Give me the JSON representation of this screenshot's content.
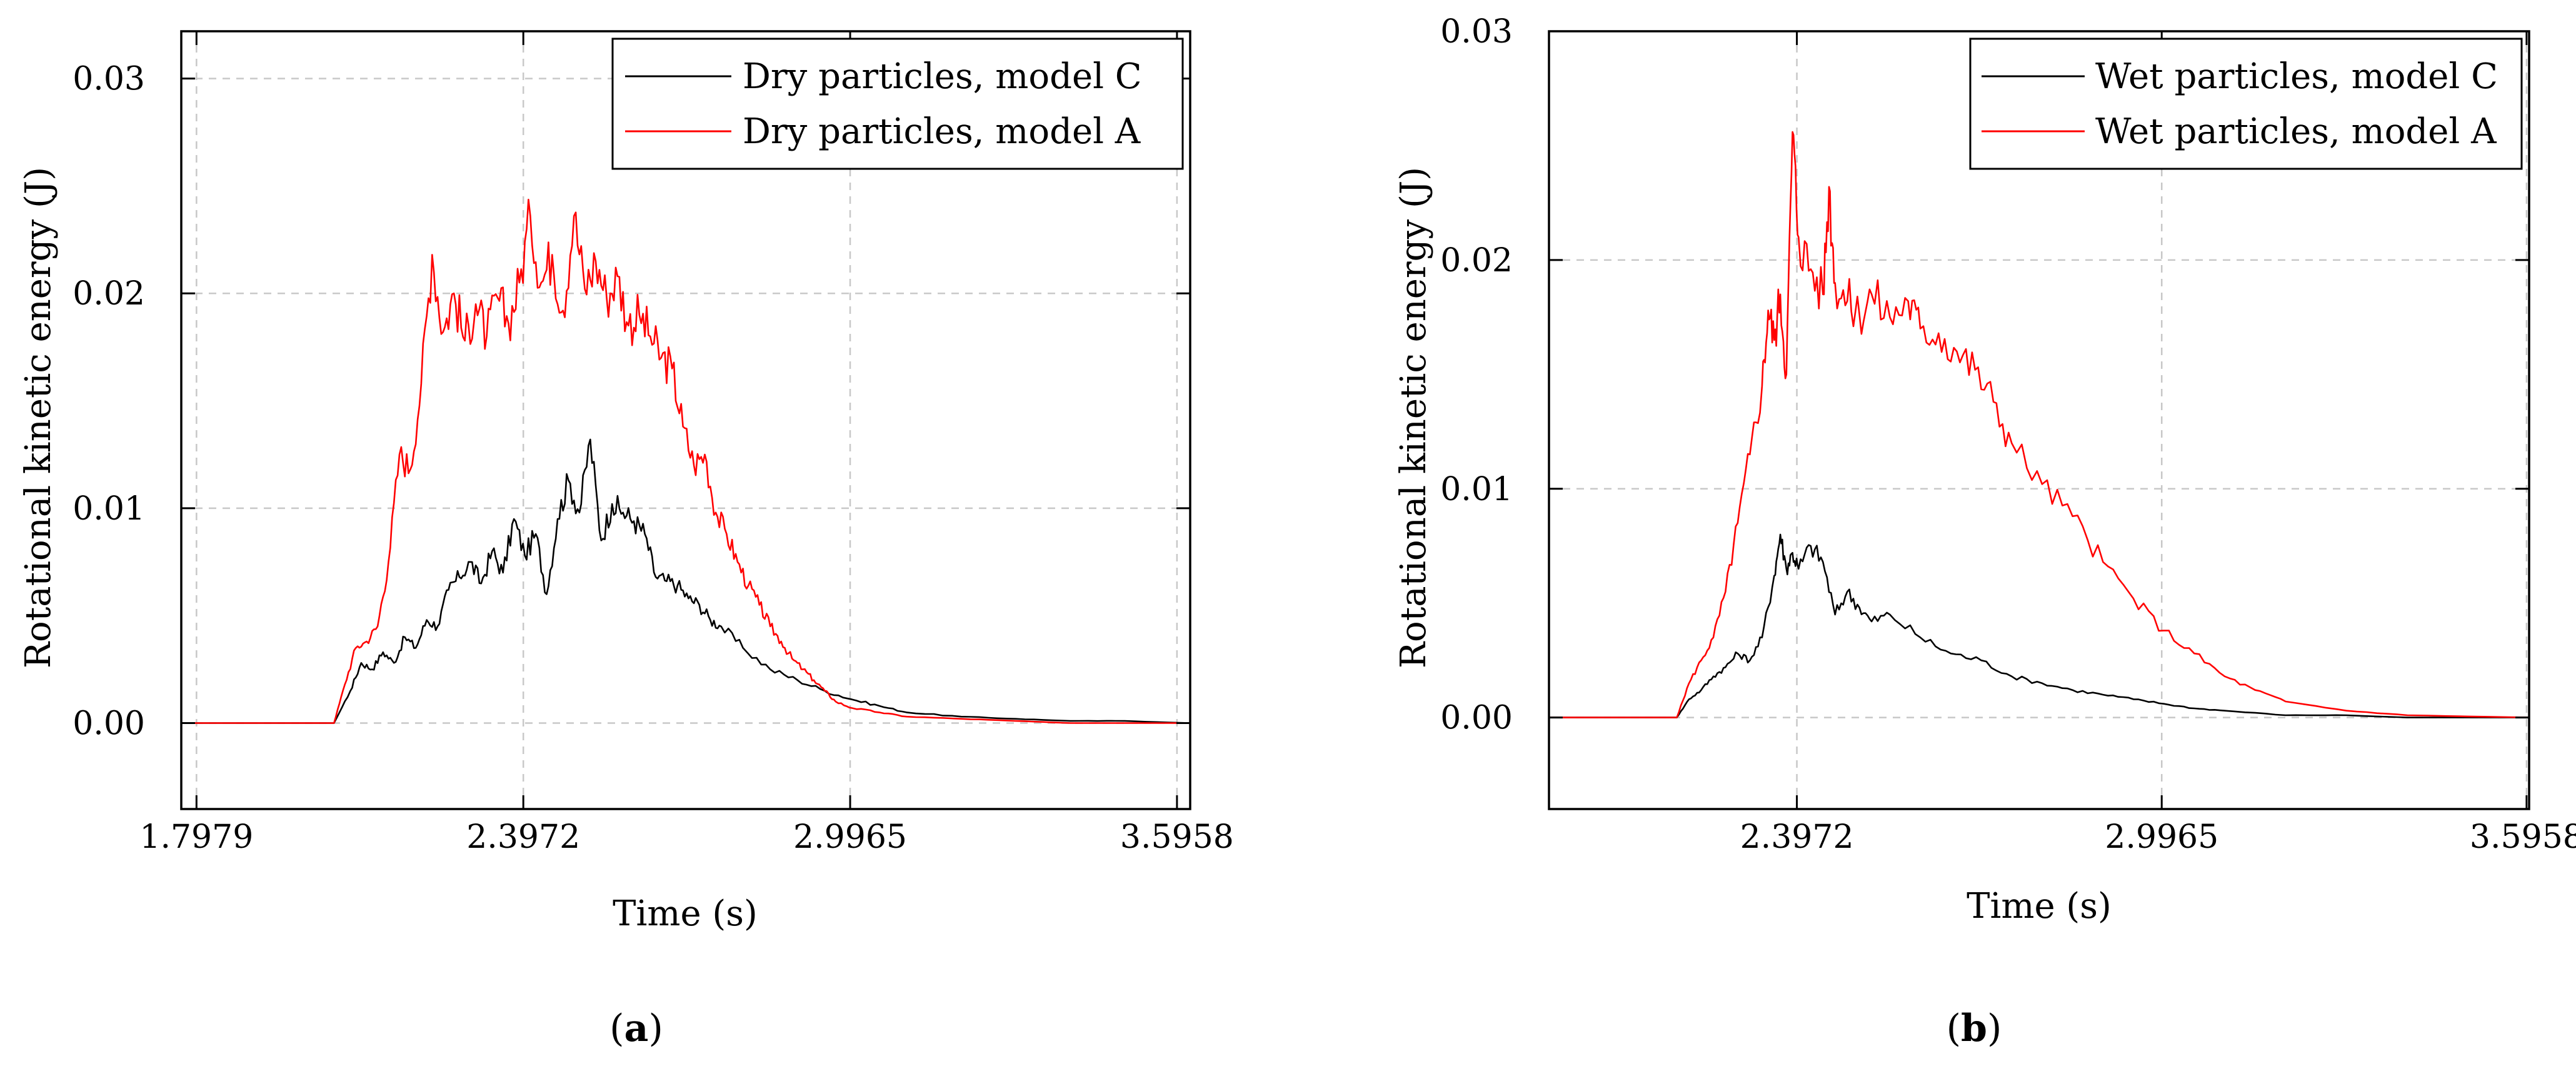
{
  "figure": {
    "panels": [
      {
        "label": "(a)",
        "label_letter": "a"
      },
      {
        "label": "(b)",
        "label_letter": "b"
      }
    ]
  },
  "colors": {
    "model_c": "#000000",
    "model_a": "#ff0000"
  },
  "chart_data": [
    {
      "type": "line",
      "panel": "a",
      "title": "",
      "xlabel": "Time (s)",
      "ylabel": "Rotational kinetic energy (J)",
      "xlim": [
        1.77,
        3.62
      ],
      "ylim": [
        -0.004,
        0.0322
      ],
      "xticks": [
        1.7979,
        2.3972,
        2.9965,
        3.5958
      ],
      "xtick_labels": [
        "1.7979",
        "2.3972",
        "2.9965",
        "3.5958"
      ],
      "yticks": [
        0.0,
        0.01,
        0.02,
        0.03
      ],
      "ytick_labels": [
        "0.00",
        "0.01",
        "0.02",
        "0.03"
      ],
      "grid": true,
      "legend_position": "top-right",
      "series": [
        {
          "name": "Dry particles, model C",
          "color": "#000000",
          "x": [
            1.77,
            2.05,
            2.08,
            2.1,
            2.12,
            2.14,
            2.16,
            2.18,
            2.2,
            2.22,
            2.24,
            2.26,
            2.28,
            2.3,
            2.32,
            2.34,
            2.36,
            2.38,
            2.4,
            2.42,
            2.44,
            2.46,
            2.48,
            2.5,
            2.52,
            2.54,
            2.56,
            2.58,
            2.6,
            2.62,
            2.64,
            2.66,
            2.68,
            2.7,
            2.72,
            2.74,
            2.76,
            2.8,
            2.85,
            2.9,
            2.95,
            3.0,
            3.05,
            3.1,
            3.2,
            3.3,
            3.4,
            3.5,
            3.62
          ],
          "y": [
            0.0,
            0.0,
            0.0015,
            0.0028,
            0.0025,
            0.0033,
            0.0028,
            0.004,
            0.0035,
            0.0048,
            0.0045,
            0.0062,
            0.0068,
            0.0075,
            0.0065,
            0.008,
            0.007,
            0.0095,
            0.0078,
            0.0088,
            0.006,
            0.0095,
            0.0113,
            0.0098,
            0.0132,
            0.0085,
            0.0102,
            0.0098,
            0.0094,
            0.0088,
            0.0068,
            0.0066,
            0.0064,
            0.0058,
            0.0055,
            0.0048,
            0.0045,
            0.0035,
            0.0025,
            0.002,
            0.0015,
            0.0011,
            0.0008,
            0.0005,
            0.0003,
            0.0002,
            0.0001,
            0.0001,
            0.0
          ]
        },
        {
          "name": "Dry particles, model A",
          "color": "#ff0000",
          "x": [
            1.77,
            2.05,
            2.07,
            2.09,
            2.11,
            2.13,
            2.15,
            2.17,
            2.19,
            2.21,
            2.23,
            2.25,
            2.27,
            2.29,
            2.31,
            2.33,
            2.35,
            2.37,
            2.39,
            2.41,
            2.43,
            2.45,
            2.47,
            2.49,
            2.51,
            2.53,
            2.55,
            2.57,
            2.59,
            2.61,
            2.63,
            2.65,
            2.67,
            2.69,
            2.71,
            2.73,
            2.75,
            2.77,
            2.79,
            2.81,
            2.83,
            2.85,
            2.87,
            2.89,
            2.91,
            2.93,
            2.95,
            2.97,
            3.0,
            3.05,
            3.1,
            3.2,
            3.3,
            3.4,
            3.62
          ],
          "y": [
            0.0,
            0.0,
            0.0018,
            0.0035,
            0.0038,
            0.0045,
            0.0075,
            0.0125,
            0.0118,
            0.0158,
            0.0218,
            0.0182,
            0.02,
            0.0178,
            0.0195,
            0.018,
            0.0198,
            0.0186,
            0.0205,
            0.0236,
            0.0205,
            0.0218,
            0.0192,
            0.0236,
            0.0202,
            0.0215,
            0.0198,
            0.0208,
            0.0185,
            0.019,
            0.018,
            0.017,
            0.0165,
            0.0138,
            0.012,
            0.0125,
            0.0098,
            0.0088,
            0.0075,
            0.0064,
            0.0055,
            0.0045,
            0.0038,
            0.003,
            0.0025,
            0.002,
            0.0015,
            0.001,
            0.0007,
            0.0005,
            0.0003,
            0.0002,
            0.0001,
            0.0,
            0.0
          ]
        }
      ]
    },
    {
      "type": "line",
      "panel": "b",
      "title": "",
      "xlabel": "Time (s)",
      "ylabel": "Rotational kinetic energy (J)",
      "xlim": [
        1.99,
        3.6
      ],
      "ylim": [
        -0.004,
        0.03
      ],
      "xticks": [
        2.3972,
        2.9965,
        3.5958
      ],
      "xtick_labels": [
        "2.3972",
        "2.9965",
        "3.5958"
      ],
      "yticks": [
        0.0,
        0.01,
        0.02,
        0.03
      ],
      "ytick_labels": [
        "0.00",
        "0.01",
        "0.02",
        "0.03"
      ],
      "grid": true,
      "legend_position": "top-right",
      "series": [
        {
          "name": "Wet particles, model C",
          "color": "#000000",
          "x": [
            1.99,
            2.2,
            2.22,
            2.24,
            2.26,
            2.28,
            2.3,
            2.32,
            2.34,
            2.36,
            2.37,
            2.38,
            2.39,
            2.4,
            2.42,
            2.44,
            2.46,
            2.48,
            2.5,
            2.52,
            2.55,
            2.6,
            2.65,
            2.7,
            2.75,
            2.8,
            2.85,
            2.9,
            2.95,
            3.0,
            3.05,
            3.1,
            3.2,
            3.3,
            3.4,
            3.6
          ],
          "y": [
            0.0,
            0.0,
            0.0008,
            0.0012,
            0.0018,
            0.0022,
            0.0028,
            0.0025,
            0.0035,
            0.0062,
            0.008,
            0.0065,
            0.0072,
            0.0065,
            0.0075,
            0.0068,
            0.0045,
            0.0055,
            0.0048,
            0.0042,
            0.0045,
            0.0035,
            0.0028,
            0.0025,
            0.0018,
            0.0015,
            0.0012,
            0.001,
            0.0008,
            0.0006,
            0.0004,
            0.0003,
            0.0001,
            0.0001,
            0.0,
            0.0
          ]
        },
        {
          "name": "Wet particles, model A",
          "color": "#ff0000",
          "x": [
            1.99,
            2.2,
            2.22,
            2.24,
            2.26,
            2.28,
            2.3,
            2.32,
            2.34,
            2.35,
            2.36,
            2.37,
            2.38,
            2.39,
            2.4,
            2.42,
            2.44,
            2.45,
            2.46,
            2.48,
            2.5,
            2.52,
            2.55,
            2.58,
            2.6,
            2.63,
            2.66,
            2.69,
            2.72,
            2.75,
            2.8,
            2.85,
            2.9,
            2.95,
            3.0,
            3.05,
            3.1,
            3.15,
            3.2,
            3.3,
            3.4,
            3.6
          ],
          "y": [
            0.0,
            0.0,
            0.0015,
            0.0025,
            0.0035,
            0.0055,
            0.0085,
            0.0115,
            0.0145,
            0.0178,
            0.0165,
            0.0185,
            0.015,
            0.0256,
            0.021,
            0.0196,
            0.0185,
            0.0232,
            0.019,
            0.0182,
            0.0176,
            0.0185,
            0.0175,
            0.0182,
            0.017,
            0.0168,
            0.016,
            0.0152,
            0.0138,
            0.012,
            0.0102,
            0.0088,
            0.0068,
            0.0052,
            0.0038,
            0.0028,
            0.0018,
            0.0012,
            0.0007,
            0.0003,
            0.0001,
            0.0
          ]
        }
      ]
    }
  ]
}
